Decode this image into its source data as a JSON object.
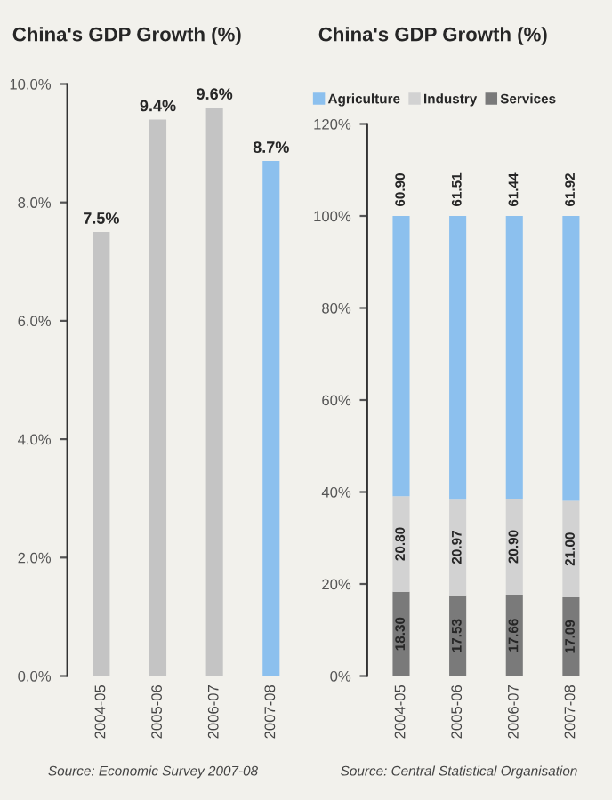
{
  "chart_data": [
    {
      "type": "bar",
      "title": "China's GDP Growth (%)",
      "categories": [
        "2004-05",
        "2005-06",
        "2006-07",
        "2007-08"
      ],
      "values": [
        7.5,
        9.4,
        9.6,
        8.7
      ],
      "colors": [
        "#c4c4c4",
        "#c4c4c4",
        "#c4c4c4",
        "#8cc0ee"
      ],
      "value_labels": [
        "7.5%",
        "9.4%",
        "9.6%",
        "8.7%"
      ],
      "ylim": [
        0,
        10
      ],
      "yticks": [
        {
          "value": 0,
          "label": "0.0%"
        },
        {
          "value": 2,
          "label": "2.0%"
        },
        {
          "value": 4,
          "label": "4.0%"
        },
        {
          "value": 6,
          "label": "6.0%"
        },
        {
          "value": 8,
          "label": "8.0%"
        },
        {
          "value": 10,
          "label": "10.0%"
        }
      ],
      "annotations": [
        "Source: Economic Survey 2007-08"
      ],
      "grid": false
    },
    {
      "type": "bar",
      "title": "China's GDP Growth (%)",
      "stacked": true,
      "categories": [
        "2004-05",
        "2005-06",
        "2006-07",
        "2007-08"
      ],
      "series": [
        {
          "name": "Services",
          "color": "#7a7a7a",
          "values": [
            18.3,
            17.53,
            17.66,
            17.09
          ],
          "value_labels": [
            "18.30",
            "17.53",
            "17.66",
            "17.09"
          ]
        },
        {
          "name": "Industry",
          "color": "#d2d2d2",
          "values": [
            20.8,
            20.97,
            20.9,
            21.0
          ],
          "value_labels": [
            "20.80",
            "20.97",
            "20.90",
            "21.00"
          ]
        },
        {
          "name": "Agriculture",
          "color": "#8cc0ee",
          "values": [
            60.9,
            61.51,
            61.44,
            61.92
          ],
          "value_labels": [
            "60.90",
            "61.51",
            "61.44",
            "61.92"
          ]
        }
      ],
      "ylim": [
        0,
        120
      ],
      "yticks": [
        {
          "value": 0,
          "label": "0%"
        },
        {
          "value": 20,
          "label": "20%"
        },
        {
          "value": 40,
          "label": "40%"
        },
        {
          "value": 60,
          "label": "60%"
        },
        {
          "value": 80,
          "label": "80%"
        },
        {
          "value": 100,
          "label": "100%"
        },
        {
          "value": 120,
          "label": "120%"
        }
      ],
      "annotations": [
        "Source: Central Statistical Organisation"
      ],
      "legend": "top",
      "grid": false
    }
  ]
}
